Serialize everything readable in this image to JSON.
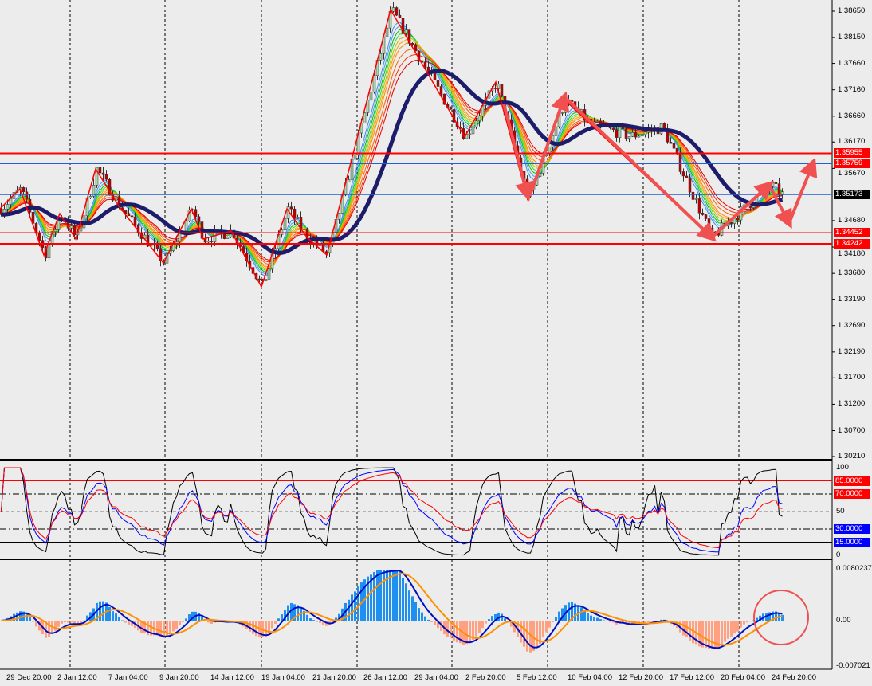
{
  "chart_data": {
    "type": "candlestick",
    "title": "",
    "price_axis": {
      "range": [
        1.3021,
        1.3865
      ],
      "ticks": [
        "1.38650",
        "1.38150",
        "1.37660",
        "1.37160",
        "1.36660",
        "1.36170",
        "1.35670",
        "1.34680",
        "1.34180",
        "1.33680",
        "1.33190",
        "1.32690",
        "1.32190",
        "1.31700",
        "1.31200",
        "1.30700",
        "1.30210"
      ]
    },
    "time_axis": {
      "ticks": [
        "29 Dec 20:00",
        "2 Jan 12:00",
        "7 Jan 04:00",
        "9 Jan 20:00",
        "14 Jan 12:00",
        "19 Jan 04:00",
        "21 Jan 20:00",
        "26 Jan 12:00",
        "29 Jan 04:00",
        "2 Feb 20:00",
        "5 Feb 12:00",
        "10 Feb 04:00",
        "12 Feb 20:00",
        "17 Feb 12:00",
        "20 Feb 04:00",
        "24 Feb 20:00"
      ]
    },
    "current_price": {
      "label": "1.35173",
      "value": 1.35173,
      "color": "#000000"
    },
    "horizontal_lines": [
      {
        "label": "1.35955",
        "value": 1.35955,
        "color": "#ff0000"
      },
      {
        "label": "1.35759",
        "value": 1.35759,
        "color": "#ff0000",
        "line_color": "#2060d0"
      },
      {
        "label": "1.34452",
        "value": 1.34452,
        "color": "#ff0000"
      },
      {
        "label": "1.34242",
        "value": 1.34242,
        "color": "#ff0000"
      }
    ],
    "zigzag_pivots": [
      1.34905,
      1.35283,
      1.3403,
      1.34815,
      1.34332,
      1.3566,
      1.34936,
      1.33879,
      1.34905,
      1.34332,
      1.34483,
      1.33426,
      1.34905,
      1.34362,
      1.3403,
      1.3868,
      1.36264,
      1.37306,
      1.35087,
      1.36974,
      1.34362,
      1.35358
    ],
    "candle_colors": {
      "bull": "#a8d8b0",
      "bear": "#c00000",
      "outline": "#333333"
    },
    "moving_average_color": "#1c1c6b",
    "ribbon_colors": [
      "#3a8ee6",
      "#4aa0f0",
      "#00c000",
      "#30e030",
      "#c0c000",
      "#ffa000",
      "#ff8c00",
      "#ff6000",
      "#ff3000",
      "#e00000"
    ],
    "arrow_color": "#f05050",
    "oscillator": {
      "type": "line",
      "ylim": [
        0,
        100
      ],
      "ticks": [
        "100",
        "50",
        "0"
      ],
      "levels": [
        {
          "label": "85.0000",
          "value": 85,
          "color": "#ff0000"
        },
        {
          "label": "70.0000",
          "value": 70,
          "color": "#ff0000"
        },
        {
          "label": "30.0000",
          "value": 30,
          "color": "#0000ff"
        },
        {
          "label": "15.0000",
          "value": 15,
          "color": "#0000ff"
        }
      ],
      "series_colors": [
        "#000000",
        "#0000ff",
        "#ff0000"
      ]
    },
    "macd": {
      "type": "bar",
      "ylim": [
        -0.007021,
        0.0080237
      ],
      "ticks": [
        "0.0080237",
        "0.00",
        "-0.007021"
      ],
      "positive_color": "#2090f0",
      "negative_color": "#ffa080",
      "line_colors": [
        "#0010c0",
        "#ff9000"
      ]
    }
  }
}
